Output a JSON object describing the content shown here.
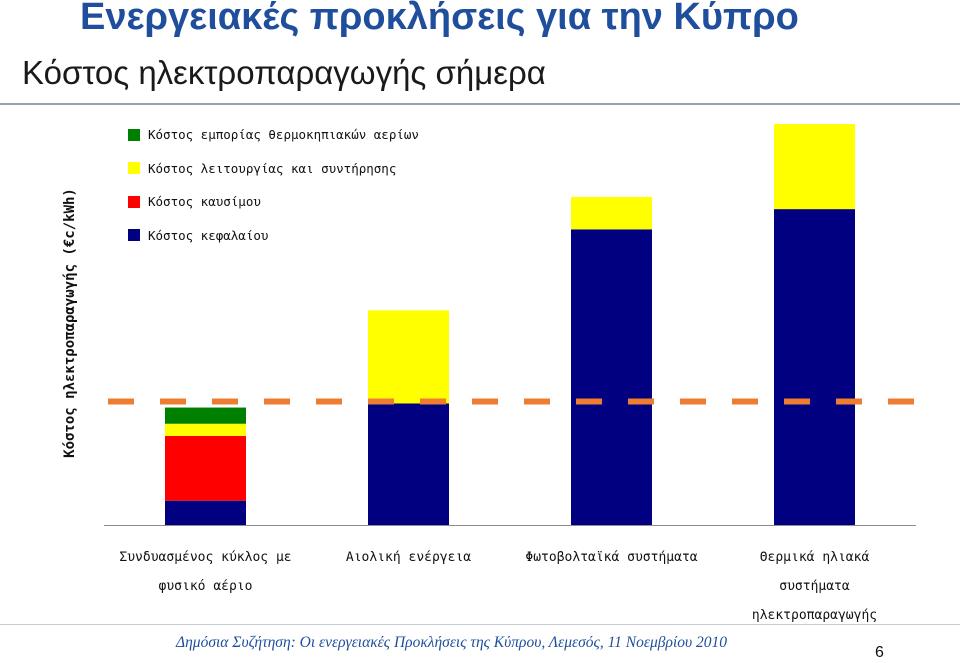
{
  "slide": {
    "title": "Ενεργειακές προκλήσεις  για την Κύπρο",
    "subtitle": "Κόστος ηλεκτροπαραγωγής σήμερα",
    "footer": "Δημόσια Συζήτηση: Οι ενεργειακές Προκλήσεις της Κύπρου, Λεμεσός, 11 Νοεμβρίου 2010",
    "page_number": "6"
  },
  "chart_data": {
    "type": "bar",
    "stacked": true,
    "title": "",
    "xlabel": "",
    "ylabel": "Κόστος ηλεκτροπαραγωγής (€c/kWh)",
    "ylim": [
      0,
      100
    ],
    "y_ticks_shown": false,
    "grid": false,
    "legend_position": "top-left",
    "categories": [
      "Συνδυασμένος κύκλος με φυσικό αέριο",
      "Αιολική ενέργεια",
      "Φωτοβολταϊκά συστήματα",
      "Θερμικά ηλιακά συστήματα ηλεκτροπαραγωγής"
    ],
    "category_lines": [
      [
        "Συνδυασμένος κύκλος με",
        "φυσικό αέριο"
      ],
      [
        "Αιολική ενέργεια"
      ],
      [
        "Φωτοβολταϊκά συστήματα"
      ],
      [
        "Θερμικά ηλιακά",
        "συστήματα",
        "ηλεκτροπαραγωγής"
      ]
    ],
    "series": [
      {
        "name": "Κόστος κεφαλαίου",
        "color": "#000080",
        "values": [
          6,
          30,
          73,
          78
        ]
      },
      {
        "name": "Κόστος καυσίμου",
        "color": "#ff0000",
        "values": [
          16,
          0,
          0,
          0
        ]
      },
      {
        "name": "Κόστος λειτουργίας και συντήρησης",
        "color": "#ffff00",
        "values": [
          3,
          23,
          8,
          21
        ]
      },
      {
        "name": "Κόστος εμπορίας θερμοκηπιακών αερίων",
        "color": "#008000",
        "values": [
          4,
          0,
          0,
          0
        ]
      }
    ],
    "legend_order": [
      3,
      2,
      1,
      0
    ],
    "reference_line": {
      "value": 30.5,
      "style": "dashed",
      "color": "#ee7d31"
    }
  }
}
